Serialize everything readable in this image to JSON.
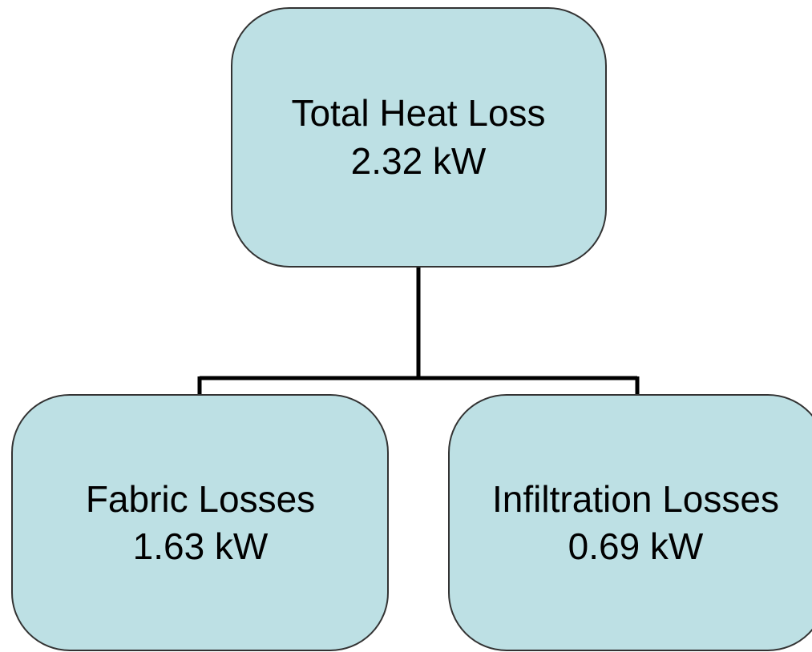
{
  "nodes": [
    {
      "label": "Total Heat Loss",
      "value": "2.32 kW"
    },
    {
      "label": "Fabric Losses",
      "value": "1.63 kW"
    },
    {
      "label": "Infiltration Losses",
      "value": "0.69 kW"
    }
  ]
}
